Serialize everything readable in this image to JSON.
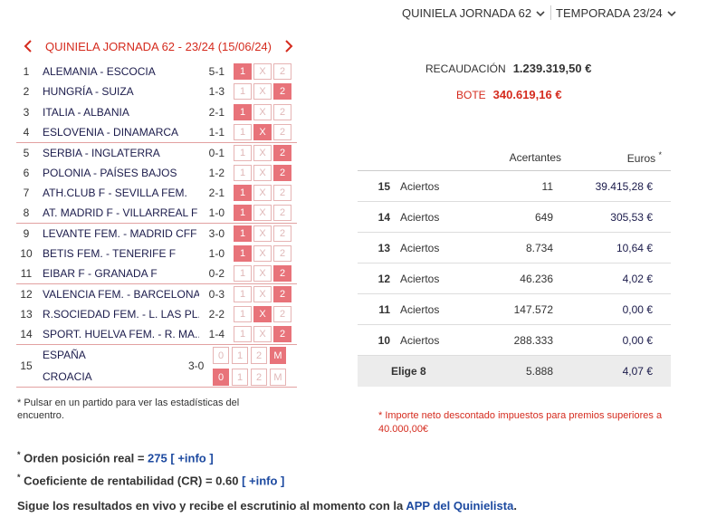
{
  "selectors": {
    "jornada": "QUINIELA JORNADA 62",
    "temporada": "TEMPORADA 23/24"
  },
  "title": "QUINIELA JORNADA 62 - 23/24 (15/06/24)",
  "matches": [
    {
      "num": "1",
      "teams": "ALEMANIA - ESCOCIA",
      "score": "5-1",
      "result": "1",
      "sep": false
    },
    {
      "num": "2",
      "teams": "HUNGRÍA - SUIZA",
      "score": "1-3",
      "result": "2",
      "sep": false
    },
    {
      "num": "3",
      "teams": "ITALIA - ALBANIA",
      "score": "2-1",
      "result": "1",
      "sep": false
    },
    {
      "num": "4",
      "teams": "ESLOVENIA - DINAMARCA",
      "score": "1-1",
      "result": "X",
      "sep": false
    },
    {
      "num": "5",
      "teams": "SERBIA - INGLATERRA",
      "score": "0-1",
      "result": "2",
      "sep": true
    },
    {
      "num": "6",
      "teams": "POLONIA - PAÍSES BAJOS",
      "score": "1-2",
      "result": "2",
      "sep": false
    },
    {
      "num": "7",
      "teams": "ATH.CLUB F - SEVILLA FEM.",
      "score": "2-1",
      "result": "1",
      "sep": false
    },
    {
      "num": "8",
      "teams": "AT. MADRID F - VILLARREAL F",
      "score": "1-0",
      "result": "1",
      "sep": false
    },
    {
      "num": "9",
      "teams": "LEVANTE FEM. - MADRID CFF",
      "score": "3-0",
      "result": "1",
      "sep": true
    },
    {
      "num": "10",
      "teams": "BETIS FEM. - TENERIFE F",
      "score": "1-0",
      "result": "1",
      "sep": false
    },
    {
      "num": "11",
      "teams": "EIBAR F - GRANADA F",
      "score": "0-2",
      "result": "2",
      "sep": false
    },
    {
      "num": "12",
      "teams": "VALENCIA FEM. - BARCELONA...",
      "score": "0-3",
      "result": "2",
      "sep": true
    },
    {
      "num": "13",
      "teams": "R.SOCIEDAD FEM. - L. LAS PL...",
      "score": "2-2",
      "result": "X",
      "sep": false
    },
    {
      "num": "14",
      "teams": "SPORT. HUELVA FEM. - R. MA...",
      "score": "1-4",
      "result": "2",
      "sep": false
    }
  ],
  "cell_labels": [
    "1",
    "X",
    "2"
  ],
  "pleno": {
    "num": "15",
    "team1": "ESPAÑA",
    "team2": "CROACIA",
    "score": "3-0",
    "labels": [
      "0",
      "1",
      "2",
      "M"
    ],
    "row1_on": "M",
    "row2_on": "0"
  },
  "note": "* Pulsar en un partido para ver las estadísticas del encuentro.",
  "recaudacion": {
    "label": "RECAUDACIÓN",
    "value": "1.239.319,50 €"
  },
  "bote": {
    "label": "BOTE",
    "value": "340.619,16 €"
  },
  "prizes": {
    "header_winners": "Acertantes",
    "header_euros": "Euros",
    "header_euros_mark": "*",
    "rows": [
      {
        "hits": "15",
        "label": "Aciertos",
        "winners": "11",
        "euros": "39.415,28 €"
      },
      {
        "hits": "14",
        "label": "Aciertos",
        "winners": "649",
        "euros": "305,53 €"
      },
      {
        "hits": "13",
        "label": "Aciertos",
        "winners": "8.734",
        "euros": "10,64 €"
      },
      {
        "hits": "12",
        "label": "Aciertos",
        "winners": "46.236",
        "euros": "4,02 €"
      },
      {
        "hits": "11",
        "label": "Aciertos",
        "winners": "147.572",
        "euros": "0,00 €"
      },
      {
        "hits": "10",
        "label": "Aciertos",
        "winners": "288.333",
        "euros": "0,00 €"
      }
    ],
    "elige": {
      "label": "Elige 8",
      "winners": "5.888",
      "euros": "4,07 €"
    }
  },
  "importe_note": "* Importe neto descontado impuestos para premios superiores a 40.000,00€",
  "bottom": {
    "mark": "*",
    "orden_label": "Orden posición real = ",
    "orden_value": "275",
    "orden_info": "[ +info ]",
    "cr_label": "Coeficiente de rentabilidad (CR) = 0.60",
    "cr_info": "[ +info ]",
    "app_text": "Sigue los resultados en vivo y recibe el escrutinio al momento con la ",
    "app_link": "APP del Quinielista",
    "app_end": "."
  },
  "colors": {
    "accent": "#d52b1e",
    "cell_on": "#e8737a",
    "link": "#1d4aa0"
  }
}
